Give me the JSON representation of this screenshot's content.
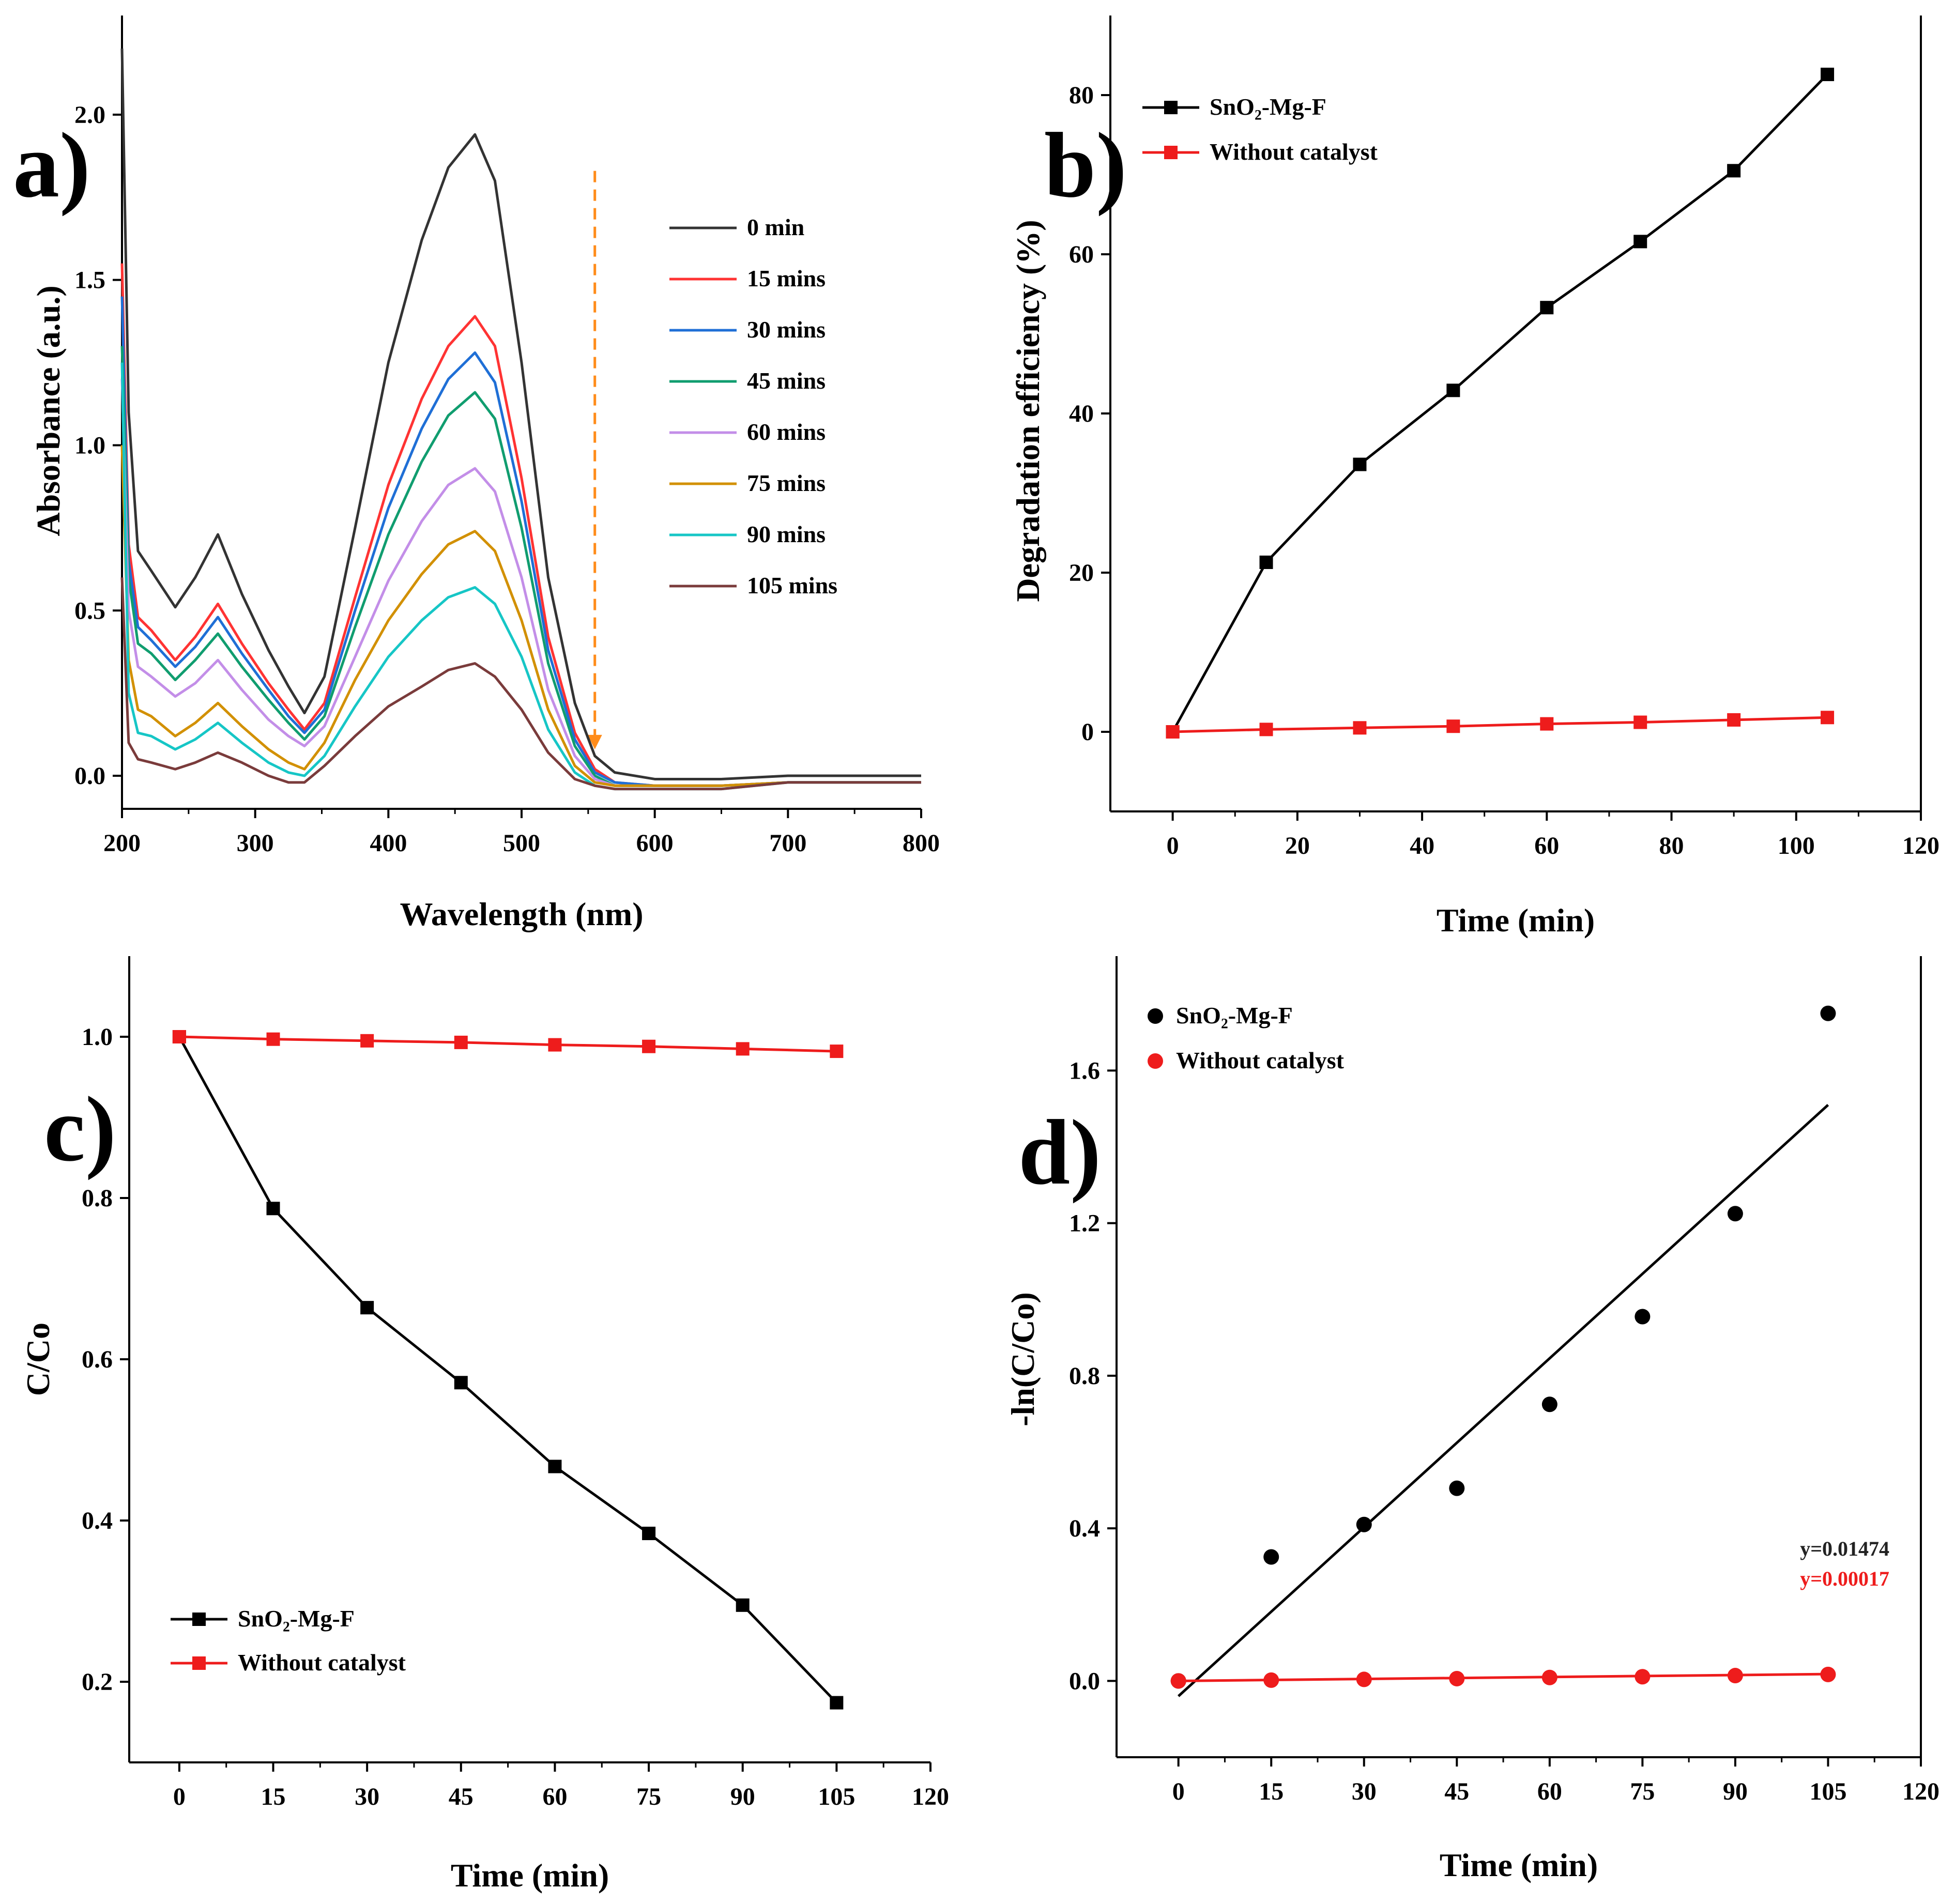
{
  "chart_data": [
    {
      "panel": "a)",
      "type": "line",
      "xlabel": "Wavelength (nm)",
      "ylabel": "Absorbance (a.u.)",
      "xlim": [
        200,
        800
      ],
      "ylim": [
        -0.1,
        2.3
      ],
      "xticks": [
        "200",
        "300",
        "400",
        "500",
        "600",
        "700",
        "800"
      ],
      "yticks": [
        "0.0",
        "0.5",
        "1.0",
        "1.5",
        "2.0"
      ],
      "legend_position": "right",
      "x": [
        200,
        205,
        212,
        222,
        240,
        255,
        272,
        290,
        310,
        325,
        337,
        352,
        375,
        400,
        425,
        445,
        465,
        480,
        500,
        520,
        540,
        555,
        570,
        600,
        650,
        700,
        800
      ],
      "series": [
        {
          "name": "0 min",
          "color": "#333333",
          "values": [
            2.2,
            1.1,
            0.68,
            0.62,
            0.51,
            0.6,
            0.73,
            0.55,
            0.38,
            0.27,
            0.19,
            0.3,
            0.75,
            1.25,
            1.62,
            1.84,
            1.94,
            1.8,
            1.25,
            0.6,
            0.22,
            0.06,
            0.01,
            -0.01,
            -0.01,
            0.0,
            0.0
          ]
        },
        {
          "name": "15 mins",
          "color": "#ff3333",
          "values": [
            1.55,
            0.7,
            0.48,
            0.44,
            0.35,
            0.42,
            0.52,
            0.4,
            0.28,
            0.2,
            0.14,
            0.22,
            0.54,
            0.88,
            1.14,
            1.3,
            1.39,
            1.3,
            0.9,
            0.42,
            0.13,
            0.02,
            -0.02,
            -0.03,
            -0.03,
            -0.02,
            -0.02
          ]
        },
        {
          "name": "30 mins",
          "color": "#1f6fd6",
          "values": [
            1.45,
            0.65,
            0.45,
            0.41,
            0.33,
            0.39,
            0.48,
            0.37,
            0.26,
            0.18,
            0.13,
            0.2,
            0.5,
            0.81,
            1.05,
            1.2,
            1.28,
            1.19,
            0.83,
            0.38,
            0.11,
            0.01,
            -0.02,
            -0.03,
            -0.03,
            -0.02,
            -0.02
          ]
        },
        {
          "name": "45 mins",
          "color": "#109d6f",
          "values": [
            1.3,
            0.6,
            0.4,
            0.37,
            0.29,
            0.35,
            0.43,
            0.33,
            0.23,
            0.16,
            0.11,
            0.18,
            0.45,
            0.73,
            0.95,
            1.09,
            1.16,
            1.08,
            0.75,
            0.34,
            0.09,
            0.0,
            -0.03,
            -0.03,
            -0.03,
            -0.02,
            -0.02
          ]
        },
        {
          "name": "60 mins",
          "color": "#c38ee8",
          "values": [
            1.2,
            0.5,
            0.33,
            0.3,
            0.24,
            0.28,
            0.35,
            0.26,
            0.17,
            0.12,
            0.09,
            0.15,
            0.36,
            0.59,
            0.77,
            0.88,
            0.93,
            0.86,
            0.6,
            0.26,
            0.06,
            -0.01,
            -0.03,
            -0.03,
            -0.03,
            -0.02,
            -0.02
          ]
        },
        {
          "name": "75 mins",
          "color": "#d29000",
          "values": [
            1.0,
            0.35,
            0.2,
            0.18,
            0.12,
            0.16,
            0.22,
            0.15,
            0.08,
            0.04,
            0.02,
            0.1,
            0.29,
            0.47,
            0.61,
            0.7,
            0.74,
            0.68,
            0.47,
            0.2,
            0.03,
            -0.02,
            -0.03,
            -0.03,
            -0.03,
            -0.02,
            -0.02
          ]
        },
        {
          "name": "90 mins",
          "color": "#16c6c6",
          "values": [
            1.25,
            0.25,
            0.13,
            0.12,
            0.08,
            0.11,
            0.16,
            0.1,
            0.04,
            0.01,
            0.0,
            0.06,
            0.21,
            0.36,
            0.47,
            0.54,
            0.57,
            0.52,
            0.36,
            0.14,
            0.01,
            -0.03,
            -0.04,
            -0.04,
            -0.04,
            -0.02,
            -0.02
          ]
        },
        {
          "name": "105 mins",
          "color": "#7a3b3b",
          "values": [
            0.6,
            0.1,
            0.05,
            0.04,
            0.02,
            0.04,
            0.07,
            0.04,
            0.0,
            -0.02,
            -0.02,
            0.03,
            0.12,
            0.21,
            0.27,
            0.32,
            0.34,
            0.3,
            0.2,
            0.07,
            -0.01,
            -0.03,
            -0.04,
            -0.04,
            -0.04,
            -0.02,
            -0.02
          ]
        }
      ],
      "annotations": [
        {
          "type": "dashed-arrow-down",
          "color": "#ff8c1a",
          "x": 555,
          "y_from": 1.83,
          "y_to": 0.08
        }
      ]
    },
    {
      "panel": "b)",
      "type": "line",
      "xlabel": "Time (min)",
      "ylabel": "Degradation efficiency (%)",
      "xlim": [
        -10,
        120
      ],
      "ylim": [
        -10,
        90
      ],
      "xticks": [
        "0",
        "20",
        "40",
        "60",
        "80",
        "100",
        "120"
      ],
      "yticks": [
        "0",
        "20",
        "40",
        "60",
        "80"
      ],
      "legend_position": "top-left",
      "x": [
        0,
        15,
        30,
        45,
        60,
        75,
        90,
        105
      ],
      "series": [
        {
          "name": "SnO₂-Mg-F",
          "color": "#000000",
          "values": [
            0,
            21.3,
            33.6,
            42.9,
            53.3,
            61.6,
            70.5,
            82.6
          ]
        },
        {
          "name": "Without catalyst",
          "color": "#ee1c1c",
          "values": [
            0,
            0.3,
            0.5,
            0.7,
            1.0,
            1.2,
            1.5,
            1.8
          ]
        }
      ]
    },
    {
      "panel": "c)",
      "type": "line",
      "xlabel": "Time (min)",
      "ylabel": "C/Co",
      "xlim": [
        -8,
        120
      ],
      "ylim": [
        0.1,
        1.1
      ],
      "xticks": [
        "0",
        "15",
        "30",
        "45",
        "60",
        "75",
        "90",
        "105",
        "120"
      ],
      "yticks": [
        "0.2",
        "0.4",
        "0.6",
        "0.8",
        "1.0"
      ],
      "legend_position": "bottom-left",
      "x": [
        0,
        15,
        30,
        45,
        60,
        75,
        90,
        105
      ],
      "series": [
        {
          "name": "SnO₂-Mg-F",
          "color": "#000000",
          "values": [
            1.0,
            0.787,
            0.664,
            0.571,
            0.467,
            0.384,
            0.295,
            0.174
          ]
        },
        {
          "name": "Without catalyst",
          "color": "#ee1c1c",
          "values": [
            1.0,
            0.997,
            0.995,
            0.993,
            0.99,
            0.988,
            0.985,
            0.982
          ]
        }
      ]
    },
    {
      "panel": "d)",
      "type": "scatter",
      "xlabel": "Time (min)",
      "ylabel": "-ln(C/Co)",
      "xlim": [
        -10,
        120
      ],
      "ylim": [
        -0.2,
        1.9
      ],
      "xticks": [
        "0",
        "15",
        "30",
        "45",
        "60",
        "75",
        "90",
        "105",
        "120"
      ],
      "yticks": [
        "0.0",
        "0.4",
        "0.8",
        "1.2",
        "1.6"
      ],
      "legend_position": "top-left",
      "x": [
        0,
        15,
        30,
        45,
        60,
        75,
        90,
        105
      ],
      "series": [
        {
          "name": "SnO₂-Mg-F",
          "color": "#000000",
          "values": [
            0.0,
            0.325,
            0.41,
            0.505,
            0.725,
            0.955,
            1.225,
            1.75
          ],
          "fit": {
            "x": [
              0,
              105
            ],
            "y": [
              -0.04,
              1.51
            ]
          }
        },
        {
          "name": "Without catalyst",
          "color": "#ee1c1c",
          "values": [
            0.0,
            0.002,
            0.004,
            0.006,
            0.009,
            0.011,
            0.014,
            0.017
          ],
          "fit": {
            "x": [
              0,
              105
            ],
            "y": [
              0.0,
              0.018
            ]
          }
        }
      ],
      "annotations": [
        {
          "text": "y=0.01474",
          "color": "#222222"
        },
        {
          "text": "y=0.00017",
          "color": "#ee1c1c"
        }
      ]
    }
  ]
}
